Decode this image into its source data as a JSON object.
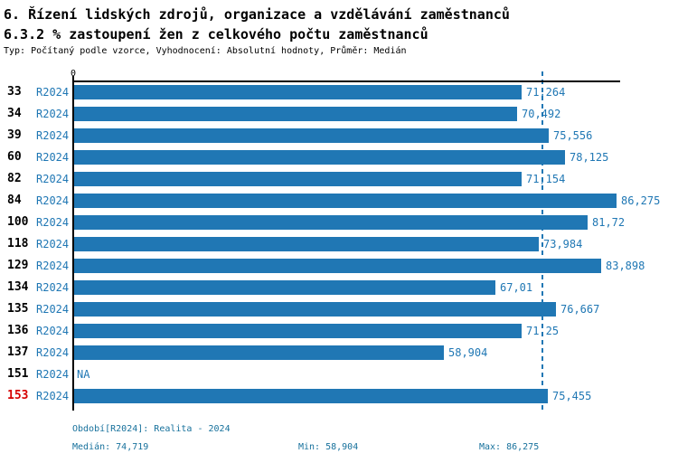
{
  "header": {
    "title": "6. Řízení lidských zdrojů, organizace a vzdělávání zaměstnanců",
    "subtitle": "6.3.2 % zastoupení žen z celkového počtu zaměstnanců",
    "meta": "Typ: Počítaný podle vzorce, Vyhodnocení: Absolutní hodnoty, Průměr: Medián"
  },
  "chart_data": {
    "type": "bar",
    "orientation": "horizontal",
    "title": "6.3.2 % zastoupení žen z celkového počtu zaměstnanců",
    "x_axis": {
      "origin_label": "0",
      "min": 0,
      "max": 86.9,
      "grid": false
    },
    "legend_position": "none",
    "period_label": "R2024",
    "rows": [
      {
        "id": "33",
        "period": "R2024",
        "value": 71.264,
        "label": "71,264",
        "highlight": false
      },
      {
        "id": "34",
        "period": "R2024",
        "value": 70.492,
        "label": "70,492",
        "highlight": false
      },
      {
        "id": "39",
        "period": "R2024",
        "value": 75.556,
        "label": "75,556",
        "highlight": false
      },
      {
        "id": "60",
        "period": "R2024",
        "value": 78.125,
        "label": "78,125",
        "highlight": false
      },
      {
        "id": "82",
        "period": "R2024",
        "value": 71.154,
        "label": "71,154",
        "highlight": false
      },
      {
        "id": "84",
        "period": "R2024",
        "value": 86.275,
        "label": "86,275",
        "highlight": false
      },
      {
        "id": "100",
        "period": "R2024",
        "value": 81.72,
        "label": "81,72",
        "highlight": false
      },
      {
        "id": "118",
        "period": "R2024",
        "value": 73.984,
        "label": "73,984",
        "highlight": false
      },
      {
        "id": "129",
        "period": "R2024",
        "value": 83.898,
        "label": "83,898",
        "highlight": false
      },
      {
        "id": "134",
        "period": "R2024",
        "value": 67.01,
        "label": "67,01",
        "highlight": false
      },
      {
        "id": "135",
        "period": "R2024",
        "value": 76.667,
        "label": "76,667",
        "highlight": false
      },
      {
        "id": "136",
        "period": "R2024",
        "value": 71.25,
        "label": "71,25",
        "highlight": false
      },
      {
        "id": "137",
        "period": "R2024",
        "value": 58.904,
        "label": "58,904",
        "highlight": false
      },
      {
        "id": "151",
        "period": "R2024",
        "value": null,
        "label": "NA",
        "highlight": false
      },
      {
        "id": "153",
        "period": "R2024",
        "value": 75.455,
        "label": "75,455",
        "highlight": true
      }
    ],
    "median_line": {
      "value": 74.719
    },
    "stats": {
      "median": 74.719,
      "min": 58.904,
      "max": 86.275
    },
    "colors": {
      "bar": "#2077b4",
      "value_label": "#1f77b4",
      "row_id": "#000000",
      "highlight_row_id": "#d60000",
      "median_line": "#2077b4",
      "footer_text": "#17719c",
      "axis": "#000000"
    }
  },
  "footer": {
    "period_info": "Období[R2024]: Realita - 2024",
    "median_label": "Medián: 74,719",
    "min_label": "Min: 58,904",
    "max_label": "Max: 86,275"
  }
}
